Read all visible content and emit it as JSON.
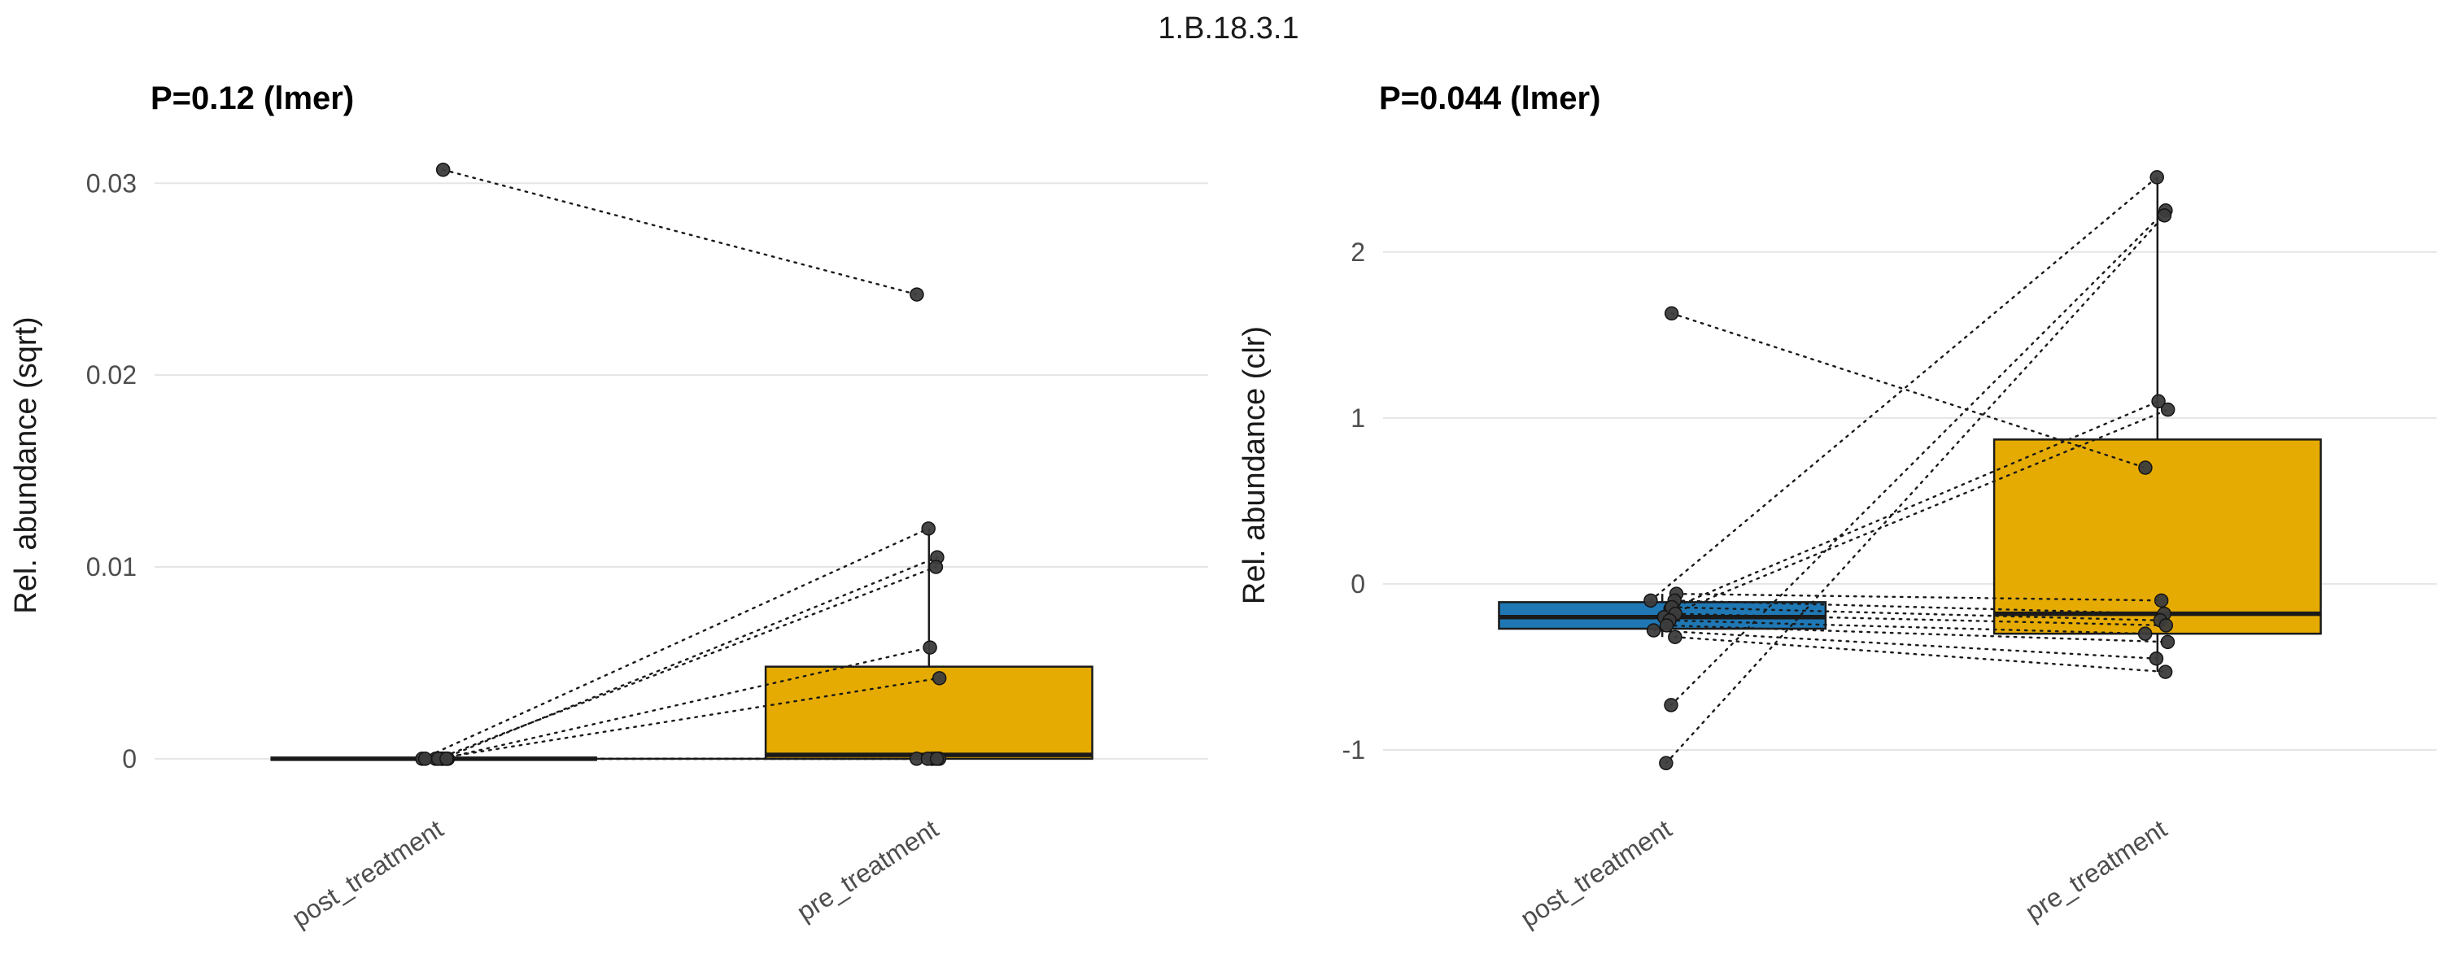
{
  "figure": {
    "title": "1.B.18.3.1"
  },
  "style": {
    "background": "#ffffff",
    "grid_color": "#e5e5e5",
    "box_outline_color": "#1a1a1a",
    "point_color": "#3c3c3c",
    "pair_line_color": "#1a1a1a",
    "tick_label_color": "#4d4d4d",
    "post_box_color": "#1F78B4",
    "pre_box_color": "#E6AB02"
  },
  "chart_data": [
    {
      "type": "boxplot",
      "title": "P=0.12 (lmer)",
      "ylabel": "Rel. abundance (sqrt)",
      "xlabel": "",
      "legend": "none",
      "grid": "horizontal",
      "categories": [
        "post_treatment",
        "pre_treatment"
      ],
      "ylim": [
        -0.0017,
        0.0323
      ],
      "yticks": [
        0,
        0.01,
        0.02,
        0.03
      ],
      "ytick_labels": [
        "0",
        "0.01",
        "0.02",
        "0.03"
      ],
      "boxes": [
        {
          "category": "post_treatment",
          "color": "#1F78B4",
          "whisker_low": 0,
          "q1": 0,
          "median": 0,
          "q3": 0,
          "whisker_high": 0
        },
        {
          "category": "pre_treatment",
          "color": "#E6AB02",
          "whisker_low": 0,
          "q1": 0,
          "median": 0.0002,
          "q3": 0.0048,
          "whisker_high": 0.012
        }
      ],
      "pairs": [
        [
          0.0307,
          0.0242
        ],
        [
          0,
          0.012
        ],
        [
          0,
          0.0105
        ],
        [
          0,
          0.01
        ],
        [
          0,
          0.0058
        ],
        [
          0,
          0.0042
        ],
        [
          0,
          0
        ],
        [
          0,
          0
        ],
        [
          0,
          0
        ],
        [
          0,
          0
        ],
        [
          0,
          0
        ],
        [
          0,
          0
        ],
        [
          0,
          0
        ],
        [
          0,
          0
        ]
      ]
    },
    {
      "type": "boxplot",
      "title": "P=0.044 (lmer)",
      "ylabel": "Rel. abundance (clr)",
      "xlabel": "",
      "legend": "none",
      "grid": "horizontal",
      "categories": [
        "post_treatment",
        "pre_treatment"
      ],
      "ylim": [
        -1.25,
        2.68
      ],
      "yticks": [
        -1,
        0,
        1,
        2
      ],
      "ytick_labels": [
        "-1",
        "0",
        "1",
        "2"
      ],
      "boxes": [
        {
          "category": "post_treatment",
          "color": "#1F78B4",
          "whisker_low": -0.32,
          "q1": -0.27,
          "median": -0.2,
          "q3": -0.11,
          "whisker_high": -0.06
        },
        {
          "category": "pre_treatment",
          "color": "#E6AB02",
          "whisker_low": -0.53,
          "q1": -0.3,
          "median": -0.18,
          "q3": 0.87,
          "whisker_high": 2.45
        }
      ],
      "pairs": [
        [
          1.63,
          0.7
        ],
        [
          -0.1,
          2.45
        ],
        [
          -0.73,
          2.25
        ],
        [
          -1.08,
          2.22
        ],
        [
          -0.15,
          1.1
        ],
        [
          -0.2,
          1.05
        ],
        [
          -0.06,
          -0.1
        ],
        [
          -0.1,
          -0.18
        ],
        [
          -0.14,
          -0.22
        ],
        [
          -0.18,
          -0.25
        ],
        [
          -0.22,
          -0.3
        ],
        [
          -0.25,
          -0.35
        ],
        [
          -0.28,
          -0.45
        ],
        [
          -0.32,
          -0.53
        ]
      ]
    }
  ]
}
